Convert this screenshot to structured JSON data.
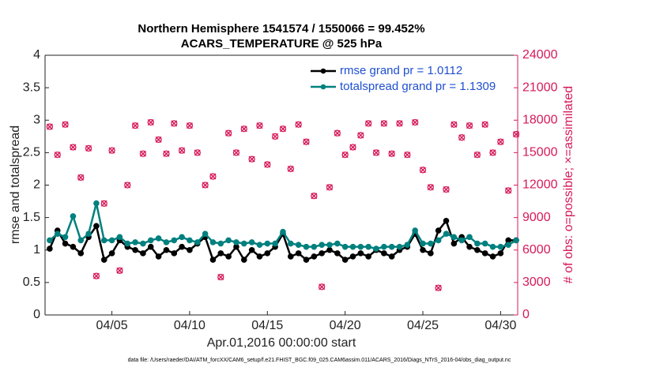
{
  "chart_data": {
    "type": "line",
    "title": "Northern Hemisphere 1541574 / 1550066 = 99.452%",
    "subtitle": "ACARS_TEMPERATURE @ 525 hPa",
    "xlabel": "Apr.01,2016 00:00:00 start",
    "ylabel": "rmse and totalspread",
    "y2label": "# of obs: o=possible; ×=assimilated",
    "footnote": "data file: /Users/raeder/DAI/ATM_forcXX/CAM6_setup/f.e21.FHIST_BGC.f09_025.CAM6assim.011/ACARS_2016/Diags_NTrS_2016-04/obs_diag_output.nc",
    "x": [
      0,
      0.5,
      1,
      1.5,
      2,
      2.5,
      3,
      3.5,
      4,
      4.5,
      5,
      5.5,
      6,
      6.5,
      7,
      7.5,
      8,
      8.5,
      9,
      9.5,
      10,
      10.5,
      11,
      11.5,
      12,
      12.5,
      13,
      13.5,
      14,
      14.5,
      15,
      15.5,
      16,
      16.5,
      17,
      17.5,
      18,
      18.5,
      19,
      19.5,
      20,
      20.5,
      21,
      21.5,
      22,
      22.5,
      23,
      23.5,
      24,
      24.5,
      25,
      25.5,
      26,
      26.5,
      27,
      27.5,
      28,
      28.5,
      29,
      29.5,
      30
    ],
    "xlim": [
      -0.3,
      30.1
    ],
    "xticks": [
      {
        "value": 4,
        "label": "04/05"
      },
      {
        "value": 9,
        "label": "04/10"
      },
      {
        "value": 14,
        "label": "04/15"
      },
      {
        "value": 19,
        "label": "04/20"
      },
      {
        "value": 24,
        "label": "04/25"
      },
      {
        "value": 29,
        "label": "04/30"
      }
    ],
    "ylim": [
      0,
      4
    ],
    "yticks": [
      0,
      0.5,
      1,
      1.5,
      2,
      2.5,
      3,
      3.5,
      4
    ],
    "y2lim": [
      0,
      24000
    ],
    "y2ticks": [
      0,
      3000,
      6000,
      9000,
      12000,
      15000,
      18000,
      21000,
      24000
    ],
    "legend": "upper right",
    "series": [
      {
        "name": "rmse grand pr = 1.0112",
        "color": "#000000",
        "marker": "o",
        "values": [
          1.02,
          1.3,
          1.1,
          1.05,
          0.95,
          1.2,
          1.37,
          0.85,
          0.95,
          1.15,
          1.05,
          1.0,
          0.95,
          1.05,
          0.9,
          1.0,
          0.95,
          1.05,
          1.0,
          1.1,
          1.2,
          0.85,
          0.95,
          0.9,
          1.05,
          0.85,
          1.0,
          0.9,
          0.95,
          1.05,
          1.25,
          0.9,
          0.95,
          0.85,
          0.9,
          0.95,
          1.0,
          0.95,
          0.85,
          0.9,
          0.95,
          0.9,
          1.0,
          0.95,
          0.9,
          1.0,
          1.05,
          1.25,
          1.0,
          0.95,
          1.3,
          1.45,
          1.1,
          1.2,
          1.05,
          1.0,
          0.95,
          0.9,
          0.95,
          1.15,
          1.15
        ]
      },
      {
        "name": "totalspread grand pr = 1.1309",
        "color": "#00807f",
        "marker": "o",
        "values": [
          1.15,
          1.25,
          1.2,
          1.52,
          1.15,
          1.25,
          1.72,
          1.15,
          1.15,
          1.2,
          1.1,
          1.12,
          1.1,
          1.15,
          1.18,
          1.12,
          1.15,
          1.2,
          1.15,
          1.12,
          1.25,
          1.12,
          1.1,
          1.15,
          1.12,
          1.1,
          1.12,
          1.08,
          1.1,
          1.1,
          1.28,
          1.1,
          1.08,
          1.05,
          1.05,
          1.08,
          1.08,
          1.1,
          1.05,
          1.05,
          1.05,
          1.05,
          1.02,
          1.05,
          1.05,
          1.05,
          1.08,
          1.3,
          1.1,
          1.1,
          1.15,
          1.25,
          1.2,
          1.15,
          1.2,
          1.1,
          1.1,
          1.05,
          1.05,
          1.08,
          1.15
        ]
      },
      {
        "axis": "y2",
        "color": "#d6195a",
        "marker": "o",
        "values": [
          17400,
          14800,
          17600,
          15500,
          12700,
          15400,
          3600,
          10300,
          15200,
          4100,
          12000,
          17500,
          14900,
          17800,
          16200,
          14900,
          17700,
          15200,
          17500,
          15000,
          12000,
          12800,
          3500,
          16800,
          15000,
          17200,
          14400,
          17500,
          13900,
          16500,
          17200,
          13500,
          17600,
          16000,
          11000,
          2600,
          11800,
          16800,
          14800,
          15500,
          16600,
          17700,
          15000,
          17700,
          14900,
          17700,
          14800,
          17800,
          13400,
          11800,
          2500,
          11600,
          17600,
          16400,
          17500,
          14800,
          17600,
          15000,
          16000,
          11500,
          16700
        ]
      },
      {
        "axis": "y2",
        "color": "#d6195a",
        "marker": "x",
        "values": [
          17400,
          14800,
          17600,
          15500,
          12700,
          15400,
          3600,
          10300,
          15200,
          4100,
          12000,
          17500,
          14900,
          17800,
          16200,
          14900,
          17700,
          15200,
          17500,
          15000,
          12000,
          12800,
          3500,
          16800,
          15000,
          17200,
          14400,
          17500,
          13900,
          16500,
          17200,
          13500,
          17600,
          16000,
          11000,
          2600,
          11800,
          16800,
          14800,
          15500,
          16600,
          17700,
          15000,
          17700,
          14900,
          17700,
          14800,
          17800,
          13400,
          11800,
          2500,
          11600,
          17600,
          16400,
          17500,
          14800,
          17600,
          15000,
          16000,
          11500,
          16700
        ]
      }
    ]
  }
}
